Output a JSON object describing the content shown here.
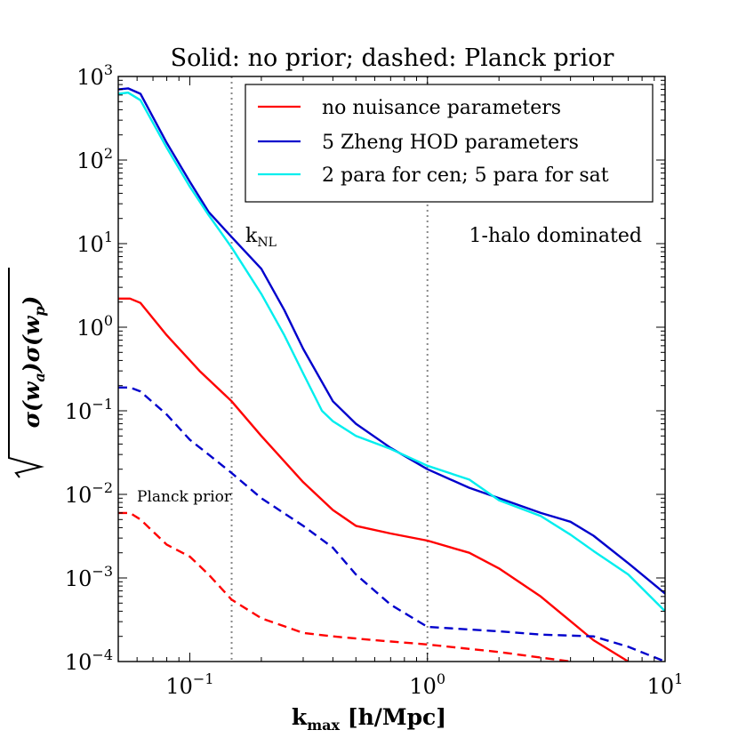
{
  "chart_data": {
    "type": "line",
    "title": "Solid: no prior; dashed: Planck prior",
    "xlabel_main": "k",
    "xlabel_sub": "max",
    "xlabel_rest": " [h/Mpc]",
    "ylabel_parts": [
      "σ(w",
      "a",
      ")σ(w",
      "p",
      ")"
    ],
    "xscale": "log",
    "yscale": "log",
    "xlim": [
      0.05,
      10
    ],
    "ylim": [
      0.0001,
      1000
    ],
    "x_ticks": [
      {
        "value": 0.1,
        "base": "10",
        "exp": "−1"
      },
      {
        "value": 1,
        "base": "10",
        "exp": "0"
      },
      {
        "value": 10,
        "base": "10",
        "exp": "1"
      }
    ],
    "y_ticks": [
      {
        "value": 0.0001,
        "base": "10",
        "exp": "−4"
      },
      {
        "value": 0.001,
        "base": "10",
        "exp": "−3"
      },
      {
        "value": 0.01,
        "base": "10",
        "exp": "−2"
      },
      {
        "value": 0.1,
        "base": "10",
        "exp": "−1"
      },
      {
        "value": 1,
        "base": "10",
        "exp": "0"
      },
      {
        "value": 10,
        "base": "10",
        "exp": "1"
      },
      {
        "value": 100,
        "base": "10",
        "exp": "2"
      },
      {
        "value": 1000,
        "base": "10",
        "exp": "3"
      }
    ],
    "vlines": [
      {
        "x": 0.15,
        "label_main": "k",
        "label_sub": "NL"
      },
      {
        "x": 1.0,
        "label_main": "1-halo dominated",
        "label_sub": ""
      }
    ],
    "annotations": [
      {
        "text": "Planck prior",
        "x": 0.056,
        "y": 0.0085
      }
    ],
    "legend": {
      "placement": "top-right",
      "entries": [
        {
          "label": "no nuisance parameters",
          "color": "#ff0000"
        },
        {
          "label": "5 Zheng HOD parameters",
          "color": "#0000cc"
        },
        {
          "label": "2 para for cen; 5 para for sat",
          "color": "#00eeee"
        }
      ]
    },
    "series": [
      {
        "name": "no nuisance parameters (no prior)",
        "color": "#ff0000",
        "style": "solid",
        "x": [
          0.05,
          0.056,
          0.062,
          0.08,
          0.11,
          0.15,
          0.2,
          0.3,
          0.4,
          0.5,
          0.7,
          1.0,
          1.5,
          2.0,
          3.0,
          5.0,
          7.0
        ],
        "y": [
          2.2,
          2.2,
          1.95,
          0.8,
          0.3,
          0.13,
          0.05,
          0.014,
          0.0065,
          0.0042,
          0.0034,
          0.0028,
          0.002,
          0.0013,
          0.0006,
          0.00018,
          0.0001
        ]
      },
      {
        "name": "5 Zheng HOD parameters (no prior)",
        "color": "#0000cc",
        "style": "solid",
        "x": [
          0.05,
          0.055,
          0.062,
          0.08,
          0.1,
          0.12,
          0.15,
          0.2,
          0.25,
          0.3,
          0.4,
          0.5,
          0.7,
          1.0,
          1.5,
          2.0,
          3.0,
          4.0,
          5.0,
          7.0,
          10.0
        ],
        "y": [
          700,
          720,
          620,
          160,
          55,
          24,
          12,
          5.0,
          1.6,
          0.55,
          0.13,
          0.07,
          0.036,
          0.02,
          0.012,
          0.009,
          0.006,
          0.0047,
          0.0032,
          0.0015,
          0.00065
        ]
      },
      {
        "name": "2 para for cen; 5 para for sat (no prior)",
        "color": "#00eeee",
        "style": "solid",
        "x": [
          0.05,
          0.055,
          0.062,
          0.08,
          0.1,
          0.12,
          0.15,
          0.2,
          0.25,
          0.3,
          0.36,
          0.4,
          0.5,
          0.7,
          1.0,
          1.5,
          2.0,
          3.0,
          4.0,
          5.0,
          7.0,
          10.0
        ],
        "y": [
          620,
          640,
          520,
          140,
          48,
          22,
          9.0,
          2.5,
          0.8,
          0.28,
          0.1,
          0.075,
          0.05,
          0.035,
          0.022,
          0.015,
          0.0085,
          0.0055,
          0.0033,
          0.0021,
          0.0011,
          0.0004
        ]
      },
      {
        "name": "no nuisance parameters (Planck prior)",
        "color": "#ff0000",
        "style": "dashed",
        "x": [
          0.05,
          0.056,
          0.062,
          0.08,
          0.1,
          0.12,
          0.15,
          0.2,
          0.3,
          0.4,
          0.6,
          1.0,
          2.0,
          4.0
        ],
        "y": [
          0.006,
          0.006,
          0.005,
          0.0025,
          0.0018,
          0.0011,
          0.00055,
          0.00033,
          0.00022,
          0.0002,
          0.00018,
          0.00016,
          0.00013,
          0.0001
        ]
      },
      {
        "name": "5 Zheng HOD parameters (Planck prior)",
        "color": "#0000cc",
        "style": "dashed",
        "x": [
          0.05,
          0.056,
          0.062,
          0.08,
          0.1,
          0.12,
          0.15,
          0.2,
          0.3,
          0.4,
          0.5,
          0.7,
          1.0,
          2.0,
          3.0,
          5.0,
          7.0,
          10.0
        ],
        "y": [
          0.19,
          0.19,
          0.17,
          0.09,
          0.045,
          0.03,
          0.018,
          0.009,
          0.0042,
          0.0023,
          0.0011,
          0.00048,
          0.00026,
          0.00023,
          0.00021,
          0.0002,
          0.00015,
          0.0001
        ]
      }
    ]
  }
}
